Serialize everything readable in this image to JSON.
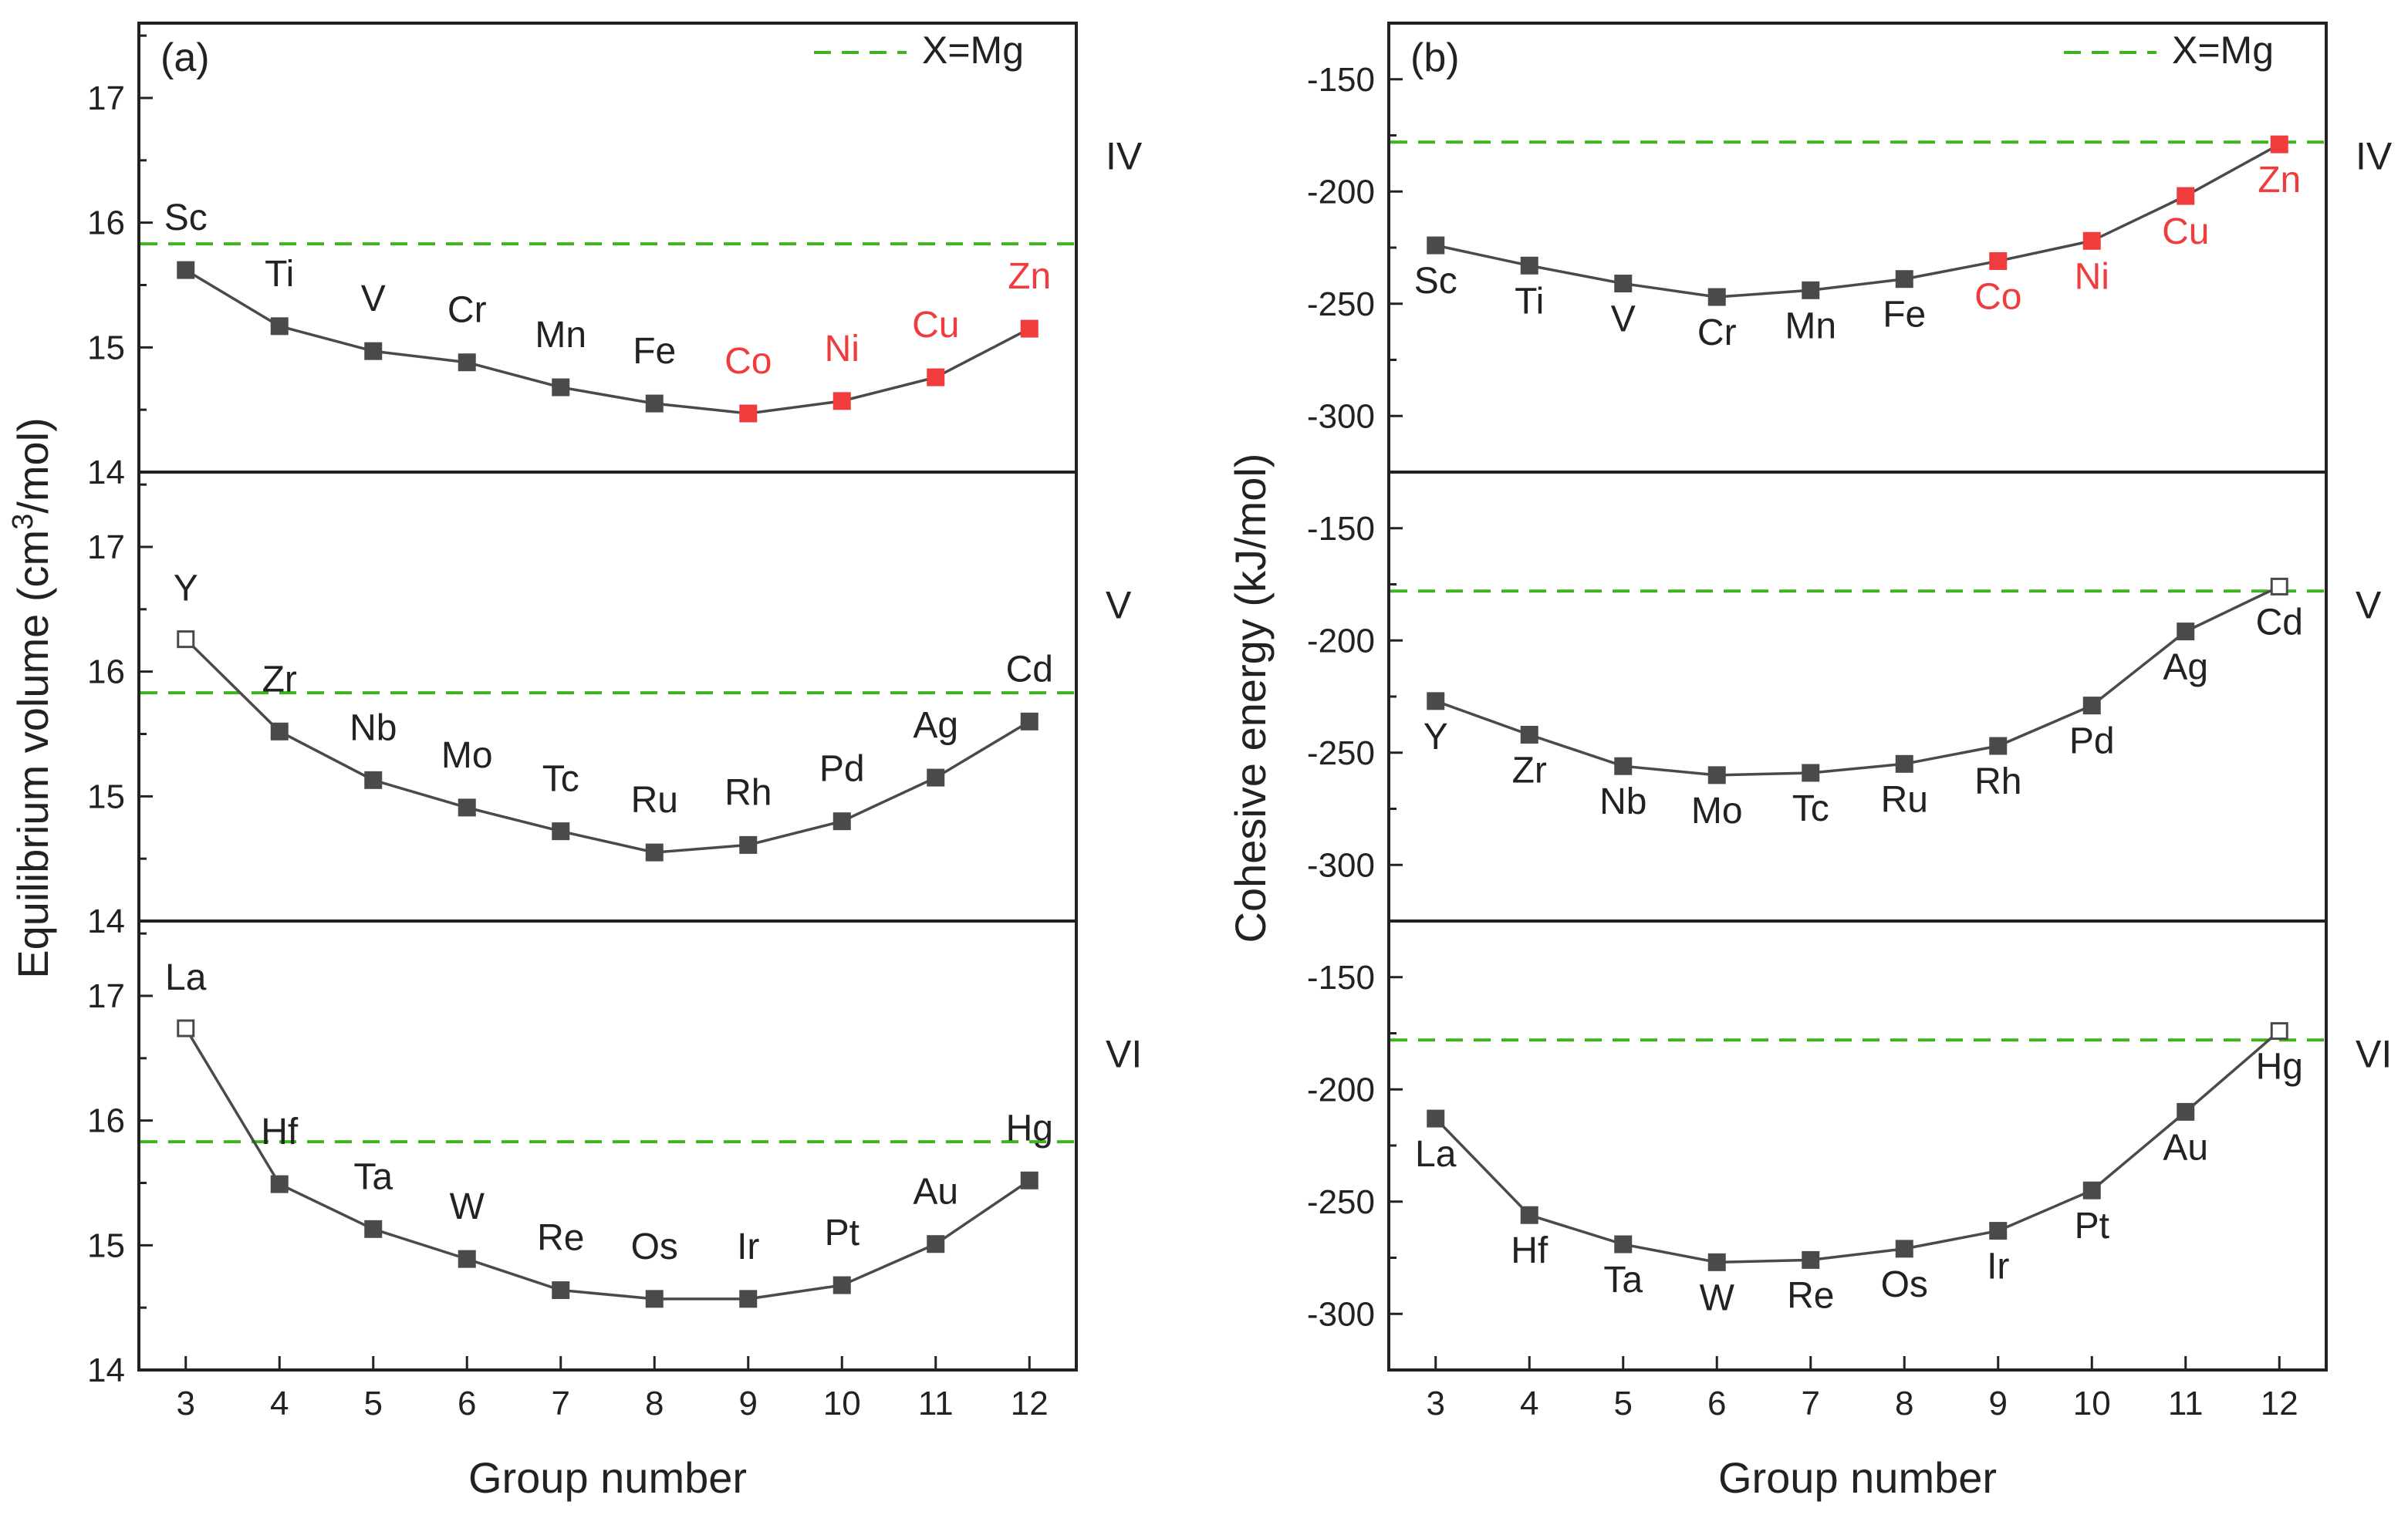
{
  "colors": {
    "series": "#4a4a4a",
    "highlight": "#f03c3c",
    "reference": "#3fb21f",
    "axis": "#222222"
  },
  "chart_data": [
    {
      "type": "line",
      "panel_label": "(a)",
      "ylabel_main": "Equilibrium volume (cm",
      "ylabel_sup": "3",
      "ylabel_tail": "/mol)",
      "xlabel": "Group number",
      "xlim": [
        2.5,
        12.5
      ],
      "x_ticks": [
        3,
        4,
        5,
        6,
        7,
        8,
        9,
        10,
        11,
        12
      ],
      "x_tick_labels": [
        "3",
        "4",
        "5",
        "6",
        "7",
        "8",
        "9",
        "10",
        "11",
        "12"
      ],
      "legend": {
        "label": "X=Mg",
        "position": "top-right"
      },
      "subplots": [
        {
          "period": "IV",
          "ylim": [
            14,
            17.6
          ],
          "y_ticks": [
            14,
            15,
            16,
            17
          ],
          "y_tick_labels": [
            "14",
            "15",
            "16",
            "17"
          ],
          "reference_line": 15.83,
          "series": [
            {
              "group": 3,
              "element": "Sc",
              "value": 15.62,
              "style": "filled"
            },
            {
              "group": 4,
              "element": "Ti",
              "value": 15.17,
              "style": "filled"
            },
            {
              "group": 5,
              "element": "V",
              "value": 14.97,
              "style": "filled"
            },
            {
              "group": 6,
              "element": "Cr",
              "value": 14.88,
              "style": "filled"
            },
            {
              "group": 7,
              "element": "Mn",
              "value": 14.68,
              "style": "filled"
            },
            {
              "group": 8,
              "element": "Fe",
              "value": 14.55,
              "style": "filled"
            },
            {
              "group": 9,
              "element": "Co",
              "value": 14.47,
              "style": "highlight"
            },
            {
              "group": 10,
              "element": "Ni",
              "value": 14.57,
              "style": "highlight"
            },
            {
              "group": 11,
              "element": "Cu",
              "value": 14.76,
              "style": "highlight"
            },
            {
              "group": 12,
              "element": "Zn",
              "value": 15.15,
              "style": "highlight"
            }
          ]
        },
        {
          "period": "V",
          "ylim": [
            14,
            17.6
          ],
          "y_ticks": [
            14,
            15,
            16,
            17
          ],
          "y_tick_labels": [
            "14",
            "15",
            "16",
            "17"
          ],
          "reference_line": 15.83,
          "series": [
            {
              "group": 3,
              "element": "Y",
              "value": 16.26,
              "style": "open"
            },
            {
              "group": 4,
              "element": "Zr",
              "value": 15.52,
              "style": "filled"
            },
            {
              "group": 5,
              "element": "Nb",
              "value": 15.13,
              "style": "filled"
            },
            {
              "group": 6,
              "element": "Mo",
              "value": 14.91,
              "style": "filled"
            },
            {
              "group": 7,
              "element": "Tc",
              "value": 14.72,
              "style": "filled"
            },
            {
              "group": 8,
              "element": "Ru",
              "value": 14.55,
              "style": "filled"
            },
            {
              "group": 9,
              "element": "Rh",
              "value": 14.61,
              "style": "filled"
            },
            {
              "group": 10,
              "element": "Pd",
              "value": 14.8,
              "style": "filled"
            },
            {
              "group": 11,
              "element": "Ag",
              "value": 15.15,
              "style": "filled"
            },
            {
              "group": 12,
              "element": "Cd",
              "value": 15.6,
              "style": "filled"
            }
          ]
        },
        {
          "period": "VI",
          "ylim": [
            14,
            17.6
          ],
          "y_ticks": [
            14,
            15,
            16,
            17
          ],
          "y_tick_labels": [
            "14",
            "15",
            "16",
            "17"
          ],
          "reference_line": 15.83,
          "series": [
            {
              "group": 3,
              "element": "La",
              "value": 16.74,
              "style": "open"
            },
            {
              "group": 4,
              "element": "Hf",
              "value": 15.49,
              "style": "filled"
            },
            {
              "group": 5,
              "element": "Ta",
              "value": 15.13,
              "style": "filled"
            },
            {
              "group": 6,
              "element": "W",
              "value": 14.89,
              "style": "filled"
            },
            {
              "group": 7,
              "element": "Re",
              "value": 14.64,
              "style": "filled"
            },
            {
              "group": 8,
              "element": "Os",
              "value": 14.57,
              "style": "filled"
            },
            {
              "group": 9,
              "element": "Ir",
              "value": 14.57,
              "style": "filled"
            },
            {
              "group": 10,
              "element": "Pt",
              "value": 14.68,
              "style": "filled"
            },
            {
              "group": 11,
              "element": "Au",
              "value": 15.01,
              "style": "filled"
            },
            {
              "group": 12,
              "element": "Hg",
              "value": 15.52,
              "style": "filled"
            }
          ]
        }
      ]
    },
    {
      "type": "line",
      "panel_label": "(b)",
      "ylabel_main": "Cohesive energy (kJ/mol)",
      "ylabel_sup": "",
      "ylabel_tail": "",
      "xlabel": "Group number",
      "xlim": [
        2.5,
        12.5
      ],
      "x_ticks": [
        3,
        4,
        5,
        6,
        7,
        8,
        9,
        10,
        11,
        12
      ],
      "x_tick_labels": [
        "3",
        "4",
        "5",
        "6",
        "7",
        "8",
        "9",
        "10",
        "11",
        "12"
      ],
      "legend": {
        "label": "X=Mg",
        "position": "top-right"
      },
      "subplots": [
        {
          "period": "IV",
          "ylim": [
            -325,
            -125
          ],
          "y_ticks": [
            -300,
            -250,
            -200,
            -150
          ],
          "y_tick_labels": [
            "-300",
            "-250",
            "-200",
            "-150"
          ],
          "reference_line": -178,
          "series": [
            {
              "group": 3,
              "element": "Sc",
              "value": -224,
              "style": "filled"
            },
            {
              "group": 4,
              "element": "Ti",
              "value": -233,
              "style": "filled"
            },
            {
              "group": 5,
              "element": "V",
              "value": -241,
              "style": "filled"
            },
            {
              "group": 6,
              "element": "Cr",
              "value": -247,
              "style": "filled"
            },
            {
              "group": 7,
              "element": "Mn",
              "value": -244,
              "style": "filled"
            },
            {
              "group": 8,
              "element": "Fe",
              "value": -239,
              "style": "filled"
            },
            {
              "group": 9,
              "element": "Co",
              "value": -231,
              "style": "highlight"
            },
            {
              "group": 10,
              "element": "Ni",
              "value": -222,
              "style": "highlight"
            },
            {
              "group": 11,
              "element": "Cu",
              "value": -202,
              "style": "highlight"
            },
            {
              "group": 12,
              "element": "Zn",
              "value": -179,
              "style": "highlight"
            }
          ]
        },
        {
          "period": "V",
          "ylim": [
            -325,
            -125
          ],
          "y_ticks": [
            -300,
            -250,
            -200,
            -150
          ],
          "y_tick_labels": [
            "-300",
            "-250",
            "-200",
            "-150"
          ],
          "reference_line": -178,
          "series": [
            {
              "group": 3,
              "element": "Y",
              "value": -227,
              "style": "filled"
            },
            {
              "group": 4,
              "element": "Zr",
              "value": -242,
              "style": "filled"
            },
            {
              "group": 5,
              "element": "Nb",
              "value": -256,
              "style": "filled"
            },
            {
              "group": 6,
              "element": "Mo",
              "value": -260,
              "style": "filled"
            },
            {
              "group": 7,
              "element": "Tc",
              "value": -259,
              "style": "filled"
            },
            {
              "group": 8,
              "element": "Ru",
              "value": -255,
              "style": "filled"
            },
            {
              "group": 9,
              "element": "Rh",
              "value": -247,
              "style": "filled"
            },
            {
              "group": 10,
              "element": "Pd",
              "value": -229,
              "style": "filled"
            },
            {
              "group": 11,
              "element": "Ag",
              "value": -196,
              "style": "filled"
            },
            {
              "group": 12,
              "element": "Cd",
              "value": -176,
              "style": "open"
            }
          ]
        },
        {
          "period": "VI",
          "ylim": [
            -325,
            -125
          ],
          "y_ticks": [
            -300,
            -250,
            -200,
            -150
          ],
          "y_tick_labels": [
            "-300",
            "-250",
            "-200",
            "-150"
          ],
          "reference_line": -178,
          "series": [
            {
              "group": 3,
              "element": "La",
              "value": -213,
              "style": "filled"
            },
            {
              "group": 4,
              "element": "Hf",
              "value": -256,
              "style": "filled"
            },
            {
              "group": 5,
              "element": "Ta",
              "value": -269,
              "style": "filled"
            },
            {
              "group": 6,
              "element": "W",
              "value": -277,
              "style": "filled"
            },
            {
              "group": 7,
              "element": "Re",
              "value": -276,
              "style": "filled"
            },
            {
              "group": 8,
              "element": "Os",
              "value": -271,
              "style": "filled"
            },
            {
              "group": 9,
              "element": "Ir",
              "value": -263,
              "style": "filled"
            },
            {
              "group": 10,
              "element": "Pt",
              "value": -245,
              "style": "filled"
            },
            {
              "group": 11,
              "element": "Au",
              "value": -210,
              "style": "filled"
            },
            {
              "group": 12,
              "element": "Hg",
              "value": -174,
              "style": "open"
            }
          ]
        }
      ]
    }
  ]
}
